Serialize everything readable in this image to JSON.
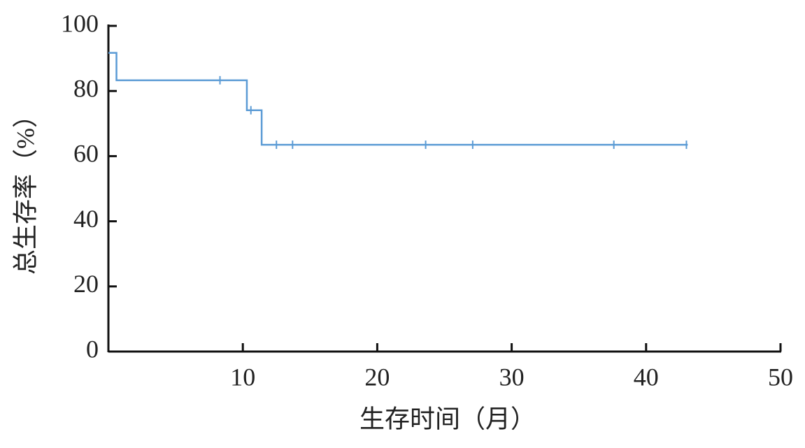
{
  "chart_data": {
    "type": "line",
    "step": true,
    "x_label": "生存时间（月）",
    "y_label": "总生存率（%）",
    "xlim": [
      0,
      50
    ],
    "xticks": [
      10,
      20,
      30,
      40,
      50
    ],
    "ylim": [
      0,
      100
    ],
    "yticks": [
      0,
      20,
      40,
      60,
      80,
      100
    ],
    "grid": false,
    "series": [
      {
        "color": "#5b9bd5",
        "x": [
          0,
          0.6,
          0.6,
          10.3,
          10.3,
          11.4,
          11.4,
          43.1
        ],
        "values": [
          91.7,
          91.7,
          83.3,
          83.3,
          74.1,
          74.1,
          63.5,
          63.5
        ]
      }
    ],
    "censored": {
      "color": "#5b9bd5",
      "x": [
        8.3,
        10.6,
        12.5,
        13.7,
        23.6,
        27.1,
        37.6,
        43.0
      ],
      "values": [
        83.3,
        74.1,
        63.5,
        63.5,
        63.5,
        63.5,
        63.5,
        63.5
      ]
    }
  }
}
